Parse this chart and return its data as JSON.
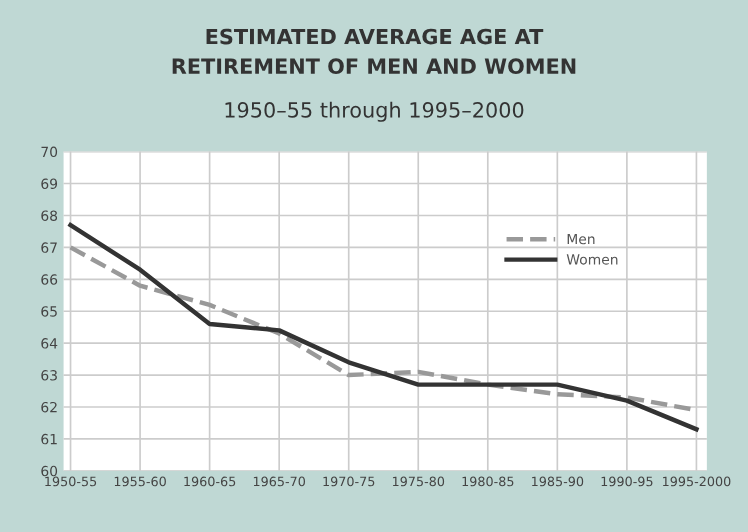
{
  "chart_data": {
    "type": "line",
    "title": "ESTIMATED AVERAGE AGE AT\nRETIREMENT OF MEN AND WOMEN",
    "subtitle": "1950–55 through 1995–2000",
    "categories": [
      "1950-55",
      "1955-60",
      "1960-65",
      "1965-70",
      "1970-75",
      "1975-80",
      "1980-85",
      "1985-90",
      "1990-95",
      "1995-2000"
    ],
    "series": [
      {
        "name": "Men",
        "color": "#999999",
        "line_style": "dashed",
        "values": [
          67.0,
          65.8,
          65.2,
          64.3,
          63.0,
          63.1,
          62.7,
          62.4,
          62.3,
          61.9
        ]
      },
      {
        "name": "Women",
        "color": "#333333",
        "line_style": "solid",
        "values": [
          67.7,
          66.3,
          64.6,
          64.4,
          63.4,
          62.7,
          62.7,
          62.7,
          62.2,
          61.3
        ]
      }
    ],
    "ylim": [
      60,
      70
    ],
    "yticks": [
      60,
      61,
      62,
      63,
      64,
      65,
      66,
      67,
      68,
      69,
      70
    ],
    "grid": true,
    "legend": "top right"
  }
}
